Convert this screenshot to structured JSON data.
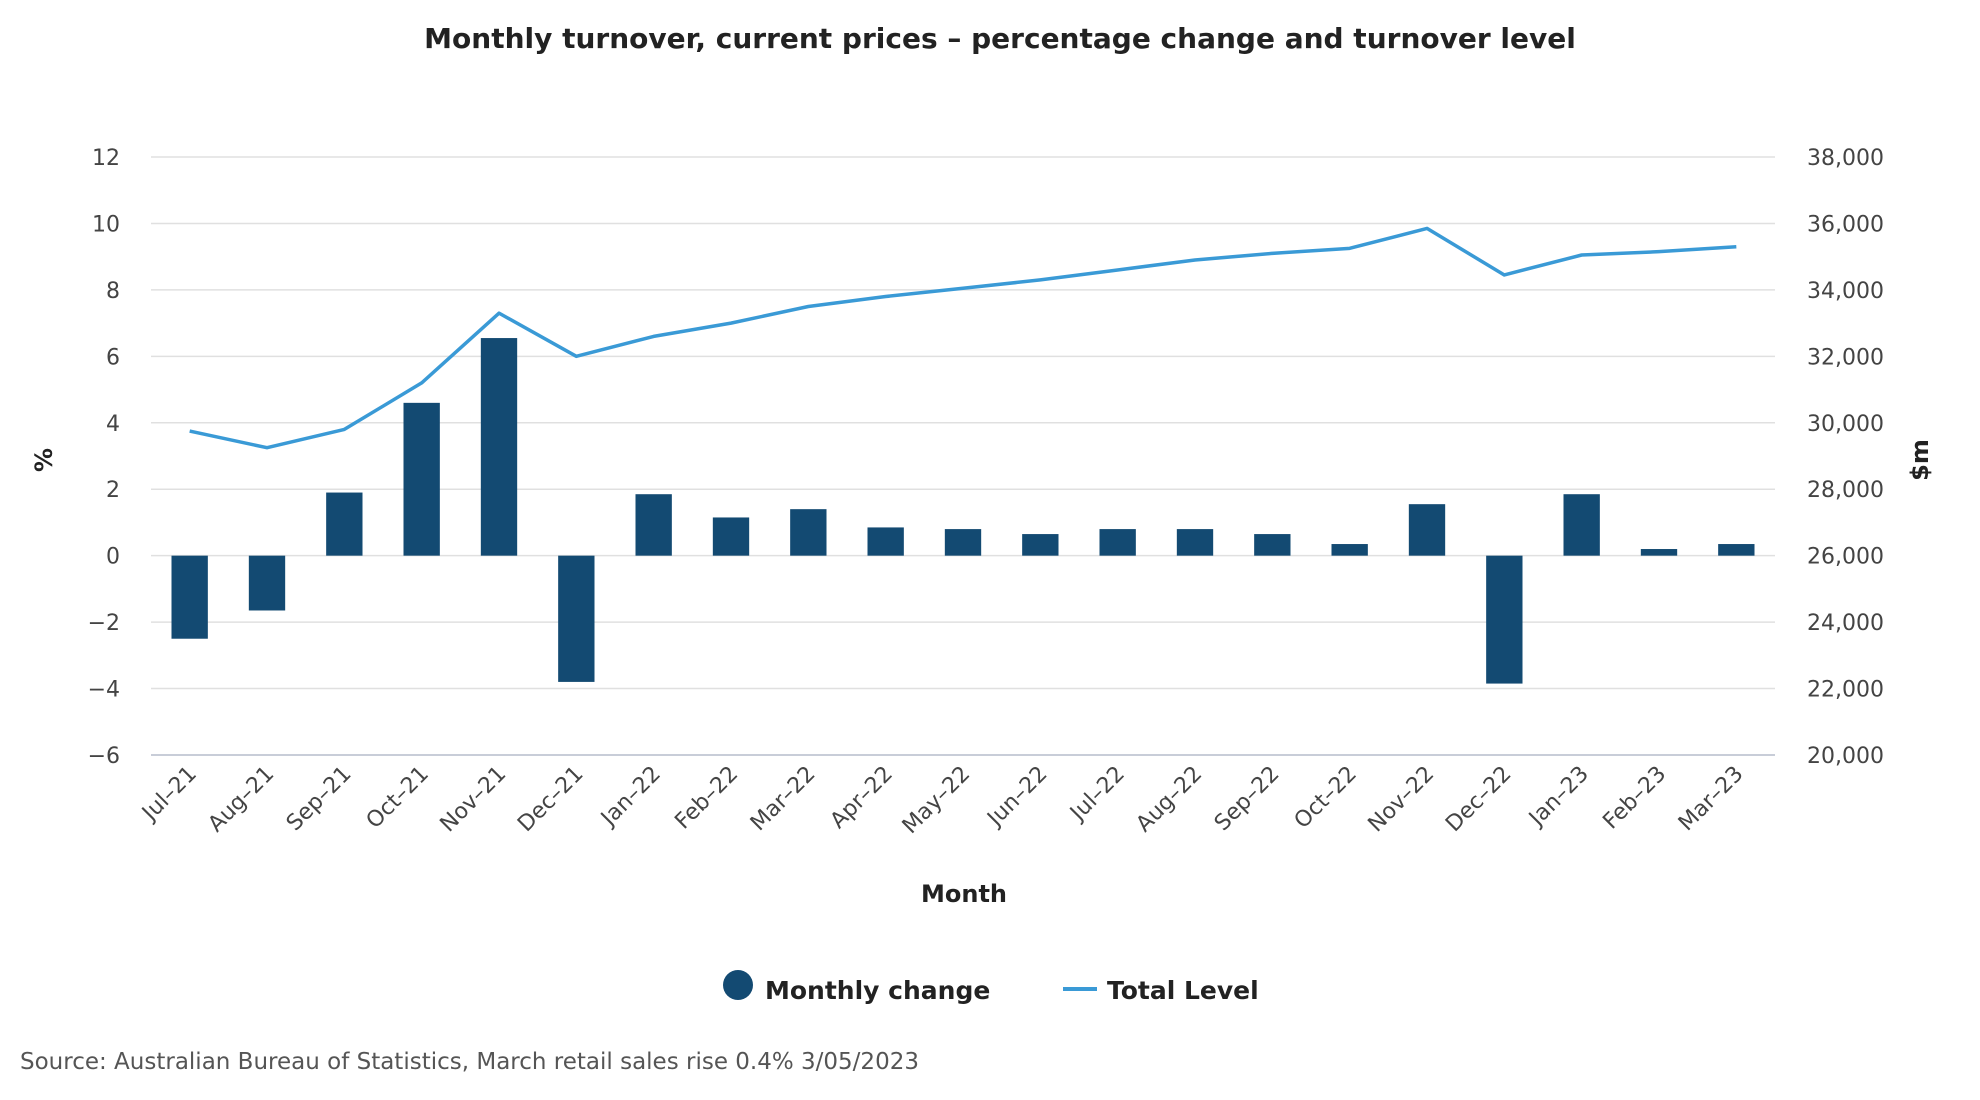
{
  "chart_data": {
    "type": "bar+line",
    "title": "Monthly turnover, current prices – percentage change and turnover level",
    "xlabel": "Month",
    "ylabel_left": "%",
    "ylabel_right": "$m",
    "ylim_left": [
      -6,
      12
    ],
    "ylim_right": [
      20000,
      38000
    ],
    "yticks_left": [
      "12",
      "10",
      "8",
      "6",
      "4",
      "2",
      "0",
      "−2",
      "−4",
      "−6"
    ],
    "yticks_right": [
      "38,000",
      "36,000",
      "34,000",
      "32,000",
      "30,000",
      "28,000",
      "26,000",
      "24,000",
      "22,000",
      "20,000"
    ],
    "categories": [
      "Jul-21",
      "Aug-21",
      "Sep-21",
      "Oct-21",
      "Nov-21",
      "Dec-21",
      "Jan-22",
      "Feb-22",
      "Mar-22",
      "Apr-22",
      "May-22",
      "Jun-22",
      "Jul-22",
      "Aug-22",
      "Sep-22",
      "Oct-22",
      "Nov-22",
      "Dec-22",
      "Jan-23",
      "Feb-23",
      "Mar-23"
    ],
    "series": [
      {
        "name": "Monthly change",
        "type": "bar",
        "axis": "left",
        "color": "#134a72",
        "values": [
          -2.5,
          -1.65,
          1.9,
          4.6,
          6.55,
          -3.8,
          1.85,
          1.15,
          1.4,
          0.85,
          0.8,
          0.65,
          0.8,
          0.8,
          0.65,
          0.35,
          1.55,
          -3.85,
          1.85,
          0.2,
          0.35
        ]
      },
      {
        "name": "Total Level",
        "type": "line",
        "axis": "right",
        "color": "#3a9ad6",
        "values": [
          29750,
          29250,
          29800,
          31200,
          33300,
          32000,
          32600,
          33000,
          33500,
          33800,
          34050,
          34300,
          34600,
          34900,
          35100,
          35250,
          35850,
          34450,
          35050,
          35150,
          35300
        ]
      }
    ],
    "grid": true,
    "legend": "bottom-center"
  },
  "source": "Source: Australian Bureau of Statistics, March retail sales rise 0.4% 3/05/2023"
}
